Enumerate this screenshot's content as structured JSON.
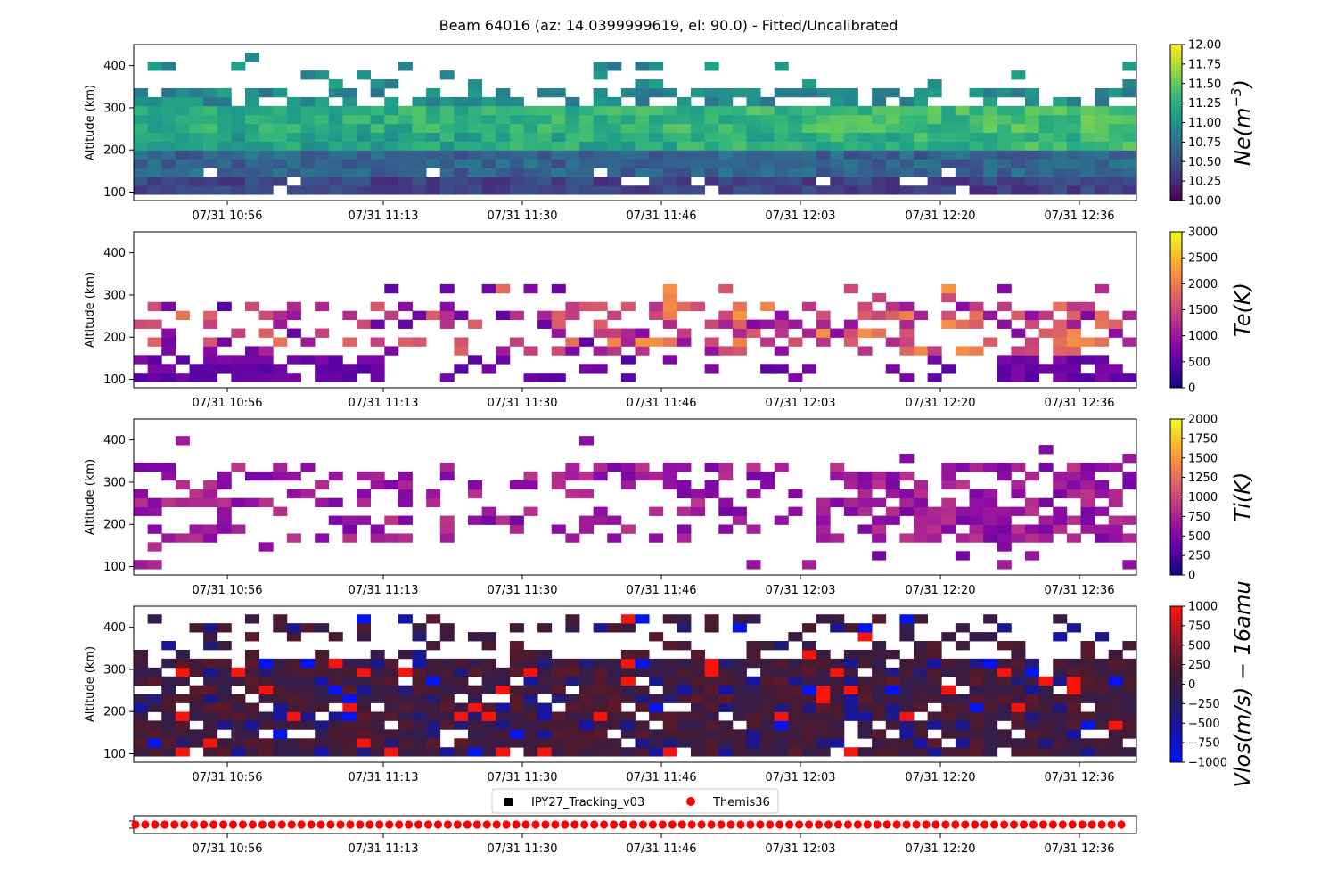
{
  "figure": {
    "title": "Beam 64016 (az: 14.0399999619, el: 90.0) - Fitted/Uncalibrated"
  },
  "time_ticks": [
    "07/31 10:56",
    "07/31 11:13",
    "07/31 11:30",
    "07/31 11:46",
    "07/31 12:03",
    "07/31 12:20",
    "07/31 12:36"
  ],
  "altitude_ticks": [
    "100",
    "200",
    "300",
    "400"
  ],
  "altitude_label": "Altitude (km)",
  "legend": {
    "items": [
      {
        "label": "IPY27_Tracking_v03",
        "marker": "square",
        "color": "#000000"
      },
      {
        "label": "Themis36",
        "marker": "circle",
        "color": "#ff0000"
      }
    ]
  },
  "chart_data": [
    {
      "type": "heatmap",
      "xlabel": "",
      "ylabel": "Altitude (km)",
      "ylim": [
        80,
        450
      ],
      "x_tick_labels": [
        "07/31 10:56",
        "07/31 11:13",
        "07/31 11:30",
        "07/31 11:46",
        "07/31 12:03",
        "07/31 12:20",
        "07/31 12:36"
      ],
      "x_range": [
        "07/31 10:44",
        "07/31 12:44"
      ],
      "colorbar": {
        "label": "Ne(m^-3)",
        "range": [
          10.0,
          12.0
        ],
        "ticks": [
          "10.00",
          "10.25",
          "10.50",
          "10.75",
          "11.00",
          "11.25",
          "11.50",
          "11.75",
          "12.00"
        ],
        "colormap": "viridis"
      },
      "altitude_bins_km": [
        100,
        400
      ],
      "approx_pattern": "values ~10.0-10.5 below 180 km, ~10.75-11.25 at 220-300 km, sparse 10.5-11.0 above 320 km"
    },
    {
      "type": "heatmap",
      "ylabel": "Altitude (km)",
      "ylim": [
        80,
        450
      ],
      "x_tick_labels": [
        "07/31 10:56",
        "07/31 11:13",
        "07/31 11:30",
        "07/31 11:46",
        "07/31 12:03",
        "07/31 12:20",
        "07/31 12:36"
      ],
      "colorbar": {
        "label": "Te(K)",
        "range": [
          0,
          3000
        ],
        "ticks": [
          "0",
          "500",
          "1000",
          "1500",
          "2000",
          "2500",
          "3000"
        ],
        "colormap": "plasma"
      },
      "approx_pattern": "~500 K below 150 km, ~1000-2000 K at 200-280 km after 11:30, sparse data"
    },
    {
      "type": "heatmap",
      "ylabel": "Altitude (km)",
      "ylim": [
        80,
        450
      ],
      "x_tick_labels": [
        "07/31 10:56",
        "07/31 11:13",
        "07/31 11:30",
        "07/31 11:46",
        "07/31 12:03",
        "07/31 12:20",
        "07/31 12:36"
      ],
      "colorbar": {
        "label": "Ti(K)",
        "range": [
          0,
          2000
        ],
        "ticks": [
          "0",
          "250",
          "500",
          "750",
          "1000",
          "1250",
          "1500",
          "1750",
          "2000"
        ],
        "colormap": "plasma"
      },
      "approx_pattern": "mostly ~500-800 K at 150-350 km, sparse"
    },
    {
      "type": "heatmap",
      "ylabel": "Altitude (km)",
      "ylim": [
        80,
        450
      ],
      "x_tick_labels": [
        "07/31 10:56",
        "07/31 11:13",
        "07/31 11:30",
        "07/31 11:46",
        "07/31 12:03",
        "07/31 12:20",
        "07/31 12:36"
      ],
      "colorbar": {
        "label": "Vlos(m/s) - 16amu",
        "range": [
          -1000,
          1000
        ],
        "ticks": [
          "-1000",
          "-750",
          "-500",
          "-250",
          "0",
          "250",
          "500",
          "750",
          "1000"
        ],
        "colormap": "blue-black-red"
      },
      "approx_pattern": "mostly near 0 m/s (dark), scattered +/-1000 m/s cells"
    },
    {
      "type": "scatter",
      "series": [
        {
          "name": "Themis36",
          "color": "#ff0000",
          "count": 102
        },
        {
          "name": "IPY27_Tracking_v03",
          "color": "#000000"
        }
      ],
      "x_tick_labels": [
        "07/31 10:56",
        "07/31 11:13",
        "07/31 11:30",
        "07/31 11:46",
        "07/31 12:03",
        "07/31 12:20",
        "07/31 12:36"
      ]
    }
  ]
}
